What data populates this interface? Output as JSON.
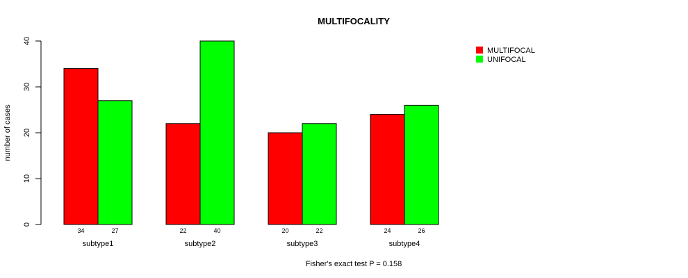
{
  "chart_data": {
    "type": "bar",
    "title": "MULTIFOCALITY",
    "ylabel": "number of cases",
    "xlabel": "",
    "categories": [
      "subtype1",
      "subtype2",
      "subtype3",
      "subtype4"
    ],
    "series": [
      {
        "name": "MULTIFOCAL",
        "color": "#ff0000",
        "values": [
          34,
          22,
          20,
          24
        ]
      },
      {
        "name": "UNIFOCAL",
        "color": "#00ff00",
        "values": [
          27,
          40,
          22,
          26
        ]
      }
    ],
    "ylim": [
      0,
      40
    ],
    "yticks": [
      0,
      10,
      20,
      30,
      40
    ],
    "legend_position": "top-right",
    "grid": false,
    "footnote": "Fisher's exact test P = 0.158"
  }
}
